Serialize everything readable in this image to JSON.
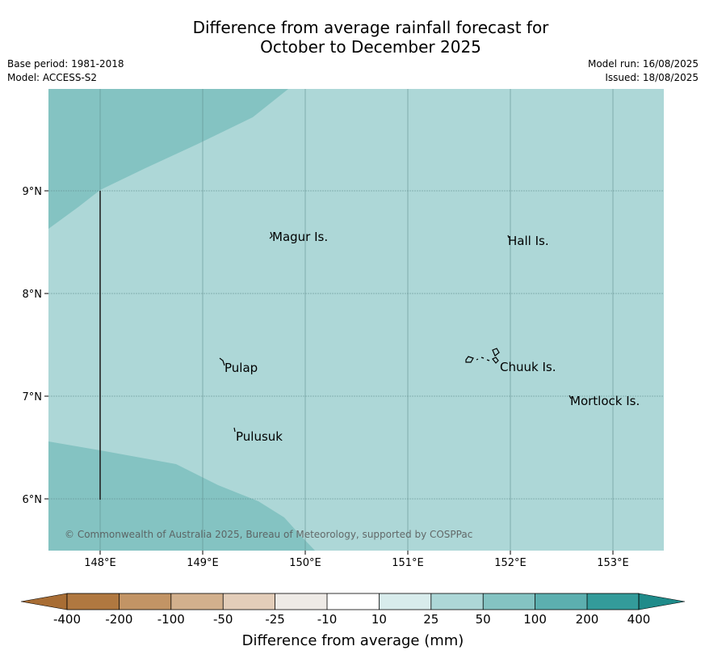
{
  "title": {
    "line1": "Difference from average rainfall forecast for",
    "line2": "October to December 2025"
  },
  "meta": {
    "base_period": "Base period: 1981-2018",
    "model": "Model: ACCESS-S2",
    "model_run": "Model run: 16/08/2025",
    "issued": "Issued: 18/08/2025"
  },
  "map": {
    "lat_labels": [
      "9°N",
      "8°N",
      "7°N",
      "6°N"
    ],
    "lon_labels": [
      "148°E",
      "149°E",
      "150°E",
      "151°E",
      "152°E",
      "153°E"
    ],
    "places": [
      {
        "name": "Magur Is."
      },
      {
        "name": "Hall Is."
      },
      {
        "name": "Pulap"
      },
      {
        "name": "Chuuk Is."
      },
      {
        "name": "Mortlock Is."
      },
      {
        "name": "Pulusuk"
      }
    ],
    "copyright": "© Commonwealth of Australia 2025, Bureau of Meteorology, supported by COSPPac",
    "colors": {
      "band_10_25": "#d8ecec",
      "band_25_50": "#add7d7",
      "band_50_100": "#84c3c2"
    }
  },
  "legend": {
    "tick_labels": [
      "-400",
      "-200",
      "-100",
      "-50",
      "-25",
      "-10",
      "10",
      "25",
      "50",
      "100",
      "200",
      "400"
    ],
    "colors": [
      "#a86d34",
      "#b07840",
      "#c29465",
      "#d2b08d",
      "#e3cdb9",
      "#eeeae6",
      "#ffffff",
      "#d8ecec",
      "#add7d7",
      "#84c3c2",
      "#5cafaf",
      "#339b9a",
      "#1f8b8a"
    ],
    "label": "Difference from average (mm)"
  }
}
